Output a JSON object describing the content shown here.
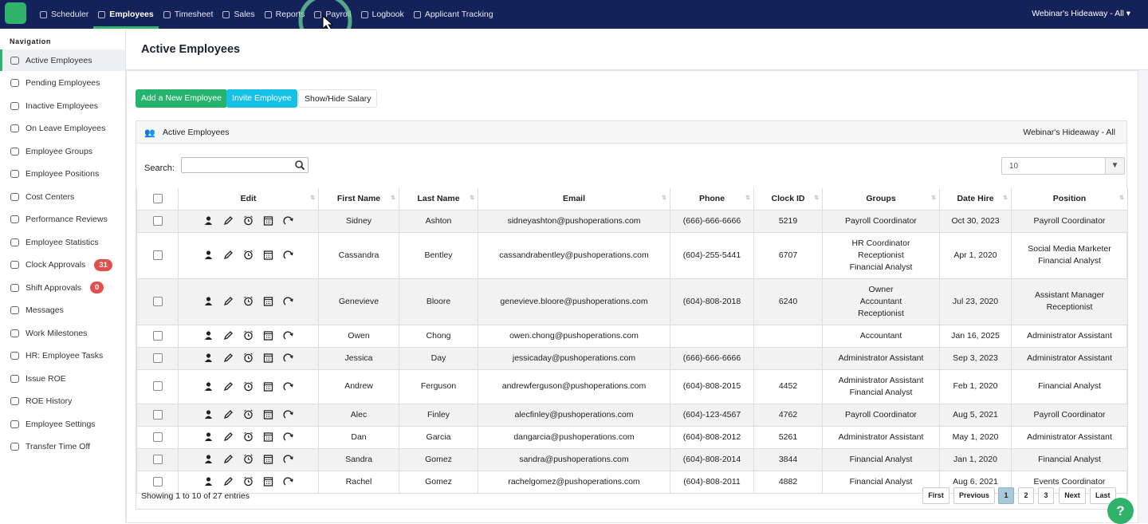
{
  "topnav": {
    "items": [
      "Scheduler",
      "Employees",
      "Timesheet",
      "Sales",
      "Reports",
      "Payroll",
      "Logbook",
      "Applicant Tracking"
    ],
    "location": "Webinar's Hideaway - All"
  },
  "sidebar": {
    "heading": "Navigation",
    "items": [
      {
        "label": "Active Employees"
      },
      {
        "label": "Pending Employees"
      },
      {
        "label": "Inactive Employees"
      },
      {
        "label": "On Leave Employees"
      },
      {
        "label": "Employee Groups"
      },
      {
        "label": "Employee Positions"
      },
      {
        "label": "Cost Centers"
      },
      {
        "label": "Performance Reviews"
      },
      {
        "label": "Employee Statistics"
      },
      {
        "label": "Clock Approvals",
        "badge": 31
      },
      {
        "label": "Shift Approvals",
        "badge": 0
      },
      {
        "label": "Messages"
      },
      {
        "label": "Work Milestones"
      },
      {
        "label": "HR: Employee Tasks"
      },
      {
        "label": "Issue ROE"
      },
      {
        "label": "ROE History"
      },
      {
        "label": "Employee Settings"
      },
      {
        "label": "Transfer Time Off"
      }
    ]
  },
  "page": {
    "title": "Active Employees",
    "buttons": [
      "Add a New Employee",
      "Invite Employee",
      "Show/Hide Salary"
    ]
  },
  "panel": {
    "title": "Active Employees",
    "location": "Webinar's Hideaway - All",
    "search_label": "Search:",
    "page_length": "10"
  },
  "table": {
    "headers": [
      "Edit",
      "First Name",
      "Last Name",
      "Email",
      "Phone",
      "Clock ID",
      "Groups",
      "Date Hire",
      "Position"
    ],
    "rows": [
      {
        "first": "Sidney",
        "last": "Ashton",
        "email": "sidneyashton@pushoperations.com",
        "phone": "(666)-666-6666",
        "clock_id": "5219",
        "groups": [
          "Payroll Coordinator"
        ],
        "date_hire": "Oct 30, 2023",
        "position": [
          "Payroll Coordinator"
        ]
      },
      {
        "first": "Cassandra",
        "last": "Bentley",
        "email": "cassandrabentley@pushoperations.com",
        "phone": "(604)-255-5441",
        "clock_id": "6707",
        "groups": [
          "HR Coordinator",
          "Receptionist",
          "Financial Analyst"
        ],
        "date_hire": "Apr 1, 2020",
        "position": [
          "Social Media Marketer",
          "Financial Analyst"
        ]
      },
      {
        "first": "Genevieve",
        "last": "Bloore",
        "email": "genevieve.bloore@pushoperations.com",
        "phone": "(604)-808-2018",
        "clock_id": "6240",
        "groups": [
          "Owner",
          "Accountant",
          "Receptionist"
        ],
        "date_hire": "Jul 23, 2020",
        "position": [
          "Assistant Manager",
          "Receptionist"
        ]
      },
      {
        "first": "Owen",
        "last": "Chong",
        "email": "owen.chong@pushoperations.com",
        "phone": null,
        "clock_id": null,
        "groups": [
          "Accountant"
        ],
        "date_hire": "Jan 16, 2025",
        "position": [
          "Administrator Assistant"
        ]
      },
      {
        "first": "Jessica",
        "last": "Day",
        "email": "jessicaday@pushoperations.com",
        "phone": "(666)-666-6666",
        "clock_id": null,
        "groups": [
          "Administrator Assistant"
        ],
        "date_hire": "Sep 3, 2023",
        "position": [
          "Administrator Assistant"
        ]
      },
      {
        "first": "Andrew",
        "last": "Ferguson",
        "email": "andrewferguson@pushoperations.com",
        "phone": "(604)-808-2015",
        "clock_id": "4452",
        "groups": [
          "Administrator Assistant",
          "Financial Analyst"
        ],
        "date_hire": "Feb 1, 2020",
        "position": [
          "Financial Analyst"
        ]
      },
      {
        "first": "Alec",
        "last": "Finley",
        "email": "alecfinley@pushoperations.com",
        "phone": "(604)-123-4567",
        "clock_id": "4762",
        "groups": [
          "Payroll Coordinator"
        ],
        "date_hire": "Aug 5, 2021",
        "position": [
          "Payroll Coordinator"
        ]
      },
      {
        "first": "Dan",
        "last": "Garcia",
        "email": "dangarcia@pushoperations.com",
        "phone": "(604)-808-2012",
        "clock_id": "5261",
        "groups": [
          "Administrator Assistant"
        ],
        "date_hire": "May 1, 2020",
        "position": [
          "Administrator Assistant"
        ]
      },
      {
        "first": "Sandra",
        "last": "Gomez",
        "email": "sandra@pushoperations.com",
        "phone": "(604)-808-2014",
        "clock_id": "3844",
        "groups": [
          "Financial Analyst"
        ],
        "date_hire": "Jan 1, 2020",
        "position": [
          "Financial Analyst"
        ]
      },
      {
        "first": "Rachel",
        "last": "Gomez",
        "email": "rachelgomez@pushoperations.com",
        "phone": "(604)-808-2011",
        "clock_id": "4882",
        "groups": [
          "Financial Analyst"
        ],
        "date_hire": "Aug 6, 2021",
        "position": [
          "Events Coordinator"
        ]
      }
    ]
  },
  "footer": {
    "info": "Showing 1 to 10 of 27 entries",
    "pagination": [
      "First",
      "Previous",
      "1",
      "2",
      "3",
      "Next",
      "Last"
    ],
    "current": "1"
  }
}
